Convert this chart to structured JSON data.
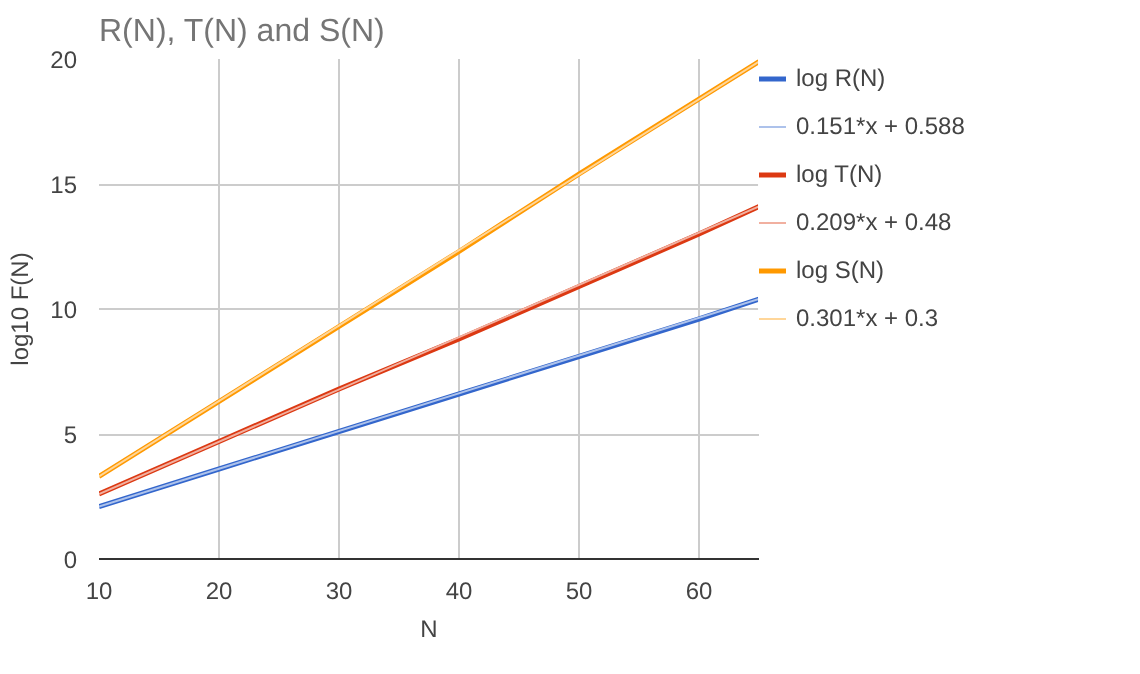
{
  "chart_data": {
    "type": "line",
    "title": "R(N), T(N) and S(N)",
    "xlabel": "N",
    "ylabel": "log10 F(N)",
    "xlim": [
      10,
      65
    ],
    "xticks": [
      10,
      20,
      30,
      40,
      50,
      60
    ],
    "ylim": [
      0,
      20
    ],
    "yticks": [
      0,
      5,
      10,
      15,
      20
    ],
    "grid": true,
    "legend": "right",
    "series": [
      {
        "name": "log R(N)",
        "color": "#3366cc",
        "x": [
          10,
          20,
          30,
          40,
          50,
          60,
          65
        ],
        "values": [
          2.1,
          3.6,
          5.1,
          6.6,
          8.1,
          9.6,
          10.4
        ]
      },
      {
        "name": "0.151*x + 0.588",
        "color": "#adc2eb",
        "x": [
          10,
          65
        ],
        "values": [
          2.1,
          10.4
        ]
      },
      {
        "name": "log T(N)",
        "color": "#dc3912",
        "x": [
          10,
          20,
          30,
          40,
          50,
          60,
          65
        ],
        "values": [
          2.6,
          4.7,
          6.8,
          8.8,
          10.9,
          13.0,
          14.1
        ]
      },
      {
        "name": "0.209*x + 0.48",
        "color": "#f1b0a0",
        "x": [
          10,
          65
        ],
        "values": [
          2.6,
          14.1
        ]
      },
      {
        "name": "log S(N)",
        "color": "#ff9900",
        "x": [
          10,
          20,
          30,
          40,
          50,
          60,
          65
        ],
        "values": [
          3.3,
          6.3,
          9.3,
          12.3,
          15.4,
          18.4,
          19.9
        ]
      },
      {
        "name": "0.301*x + 0.3",
        "color": "#ffd699",
        "x": [
          10,
          65
        ],
        "values": [
          3.3,
          19.9
        ]
      }
    ]
  }
}
